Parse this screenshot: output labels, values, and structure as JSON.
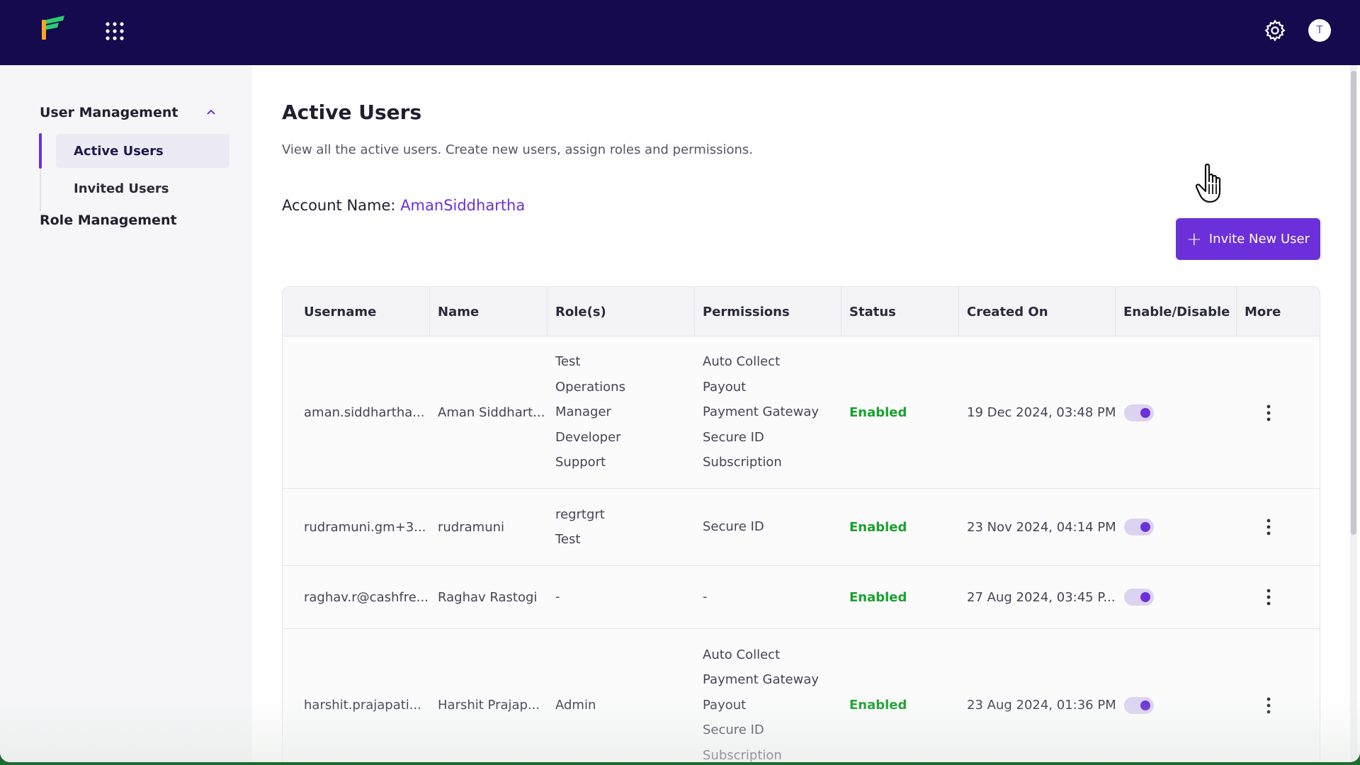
{
  "header": {
    "logo_icon": "cashfree-logo-icon",
    "apps_icon": "apps-grid-icon",
    "settings_icon": "gear-icon",
    "avatar_initial": "T",
    "colors": {
      "background": "#140a4d",
      "accent": "#6b30d9"
    }
  },
  "sidebar": {
    "group_label": "User Management",
    "items": [
      {
        "label": "Active Users",
        "active": true
      },
      {
        "label": "Invited Users",
        "active": false
      }
    ],
    "role_management": "Role Management"
  },
  "main": {
    "title": "Active Users",
    "description": "View all the active users. Create new users, assign roles and permissions.",
    "account_label": "Account Name:",
    "account_value": "AmanSiddhartha",
    "invite_button": "Invite New User"
  },
  "table": {
    "columns": [
      "Username",
      "Name",
      "Role(s)",
      "Permissions",
      "Status",
      "Created On",
      "Enable/Disable",
      "More"
    ],
    "rows": [
      {
        "username": "aman.siddhartha...",
        "name": "Aman Siddhart...",
        "roles": [
          "Test",
          "Operations",
          "Manager",
          "Developer",
          "Support"
        ],
        "permissions": [
          "Auto Collect",
          "Payout",
          "Payment Gateway",
          "Secure ID",
          "Subscription"
        ],
        "status": "Enabled",
        "created_on": "19 Dec 2024, 03:48 PM",
        "enabled": true
      },
      {
        "username": "rudramuni.gm+3...",
        "name": "rudramuni",
        "roles": [
          "regrtgrt",
          "Test"
        ],
        "permissions": [
          "Secure ID"
        ],
        "status": "Enabled",
        "created_on": "23 Nov 2024, 04:14 PM",
        "enabled": true
      },
      {
        "username": "raghav.r@cashfre...",
        "name": "Raghav Rastogi",
        "roles": [
          "-"
        ],
        "permissions": [
          "-"
        ],
        "status": "Enabled",
        "created_on": "27 Aug 2024, 03:45 P...",
        "enabled": true
      },
      {
        "username": "harshit.prajapati...",
        "name": "Harshit Prajap...",
        "roles": [
          "Admin"
        ],
        "permissions": [
          "Auto Collect",
          "Payment Gateway",
          "Payout",
          "Secure ID",
          "Subscription"
        ],
        "status": "Enabled",
        "created_on": "23 Aug 2024, 01:36 PM",
        "enabled": true
      }
    ]
  }
}
